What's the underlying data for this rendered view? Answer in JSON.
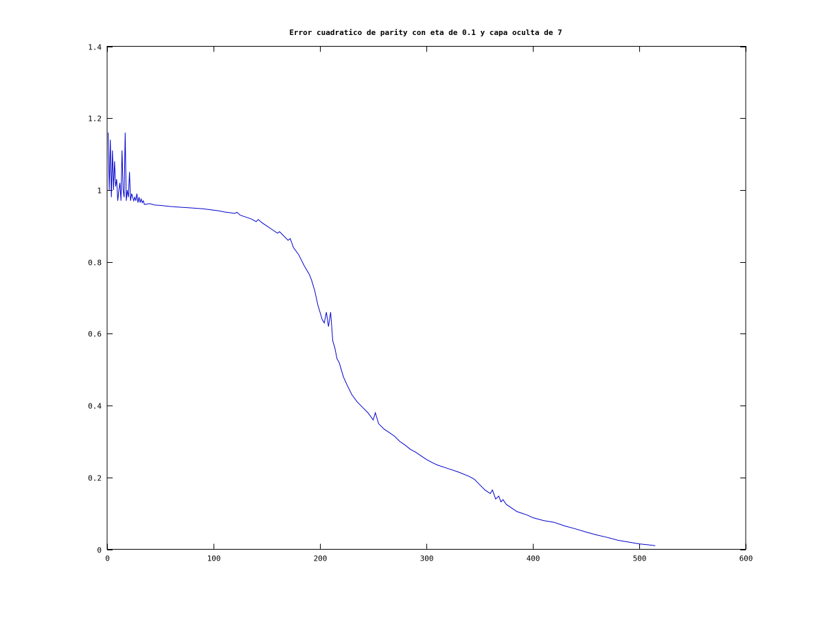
{
  "chart_data": {
    "type": "line",
    "title": "Error cuadratico de parity con eta de 0.1 y capa oculta de 7",
    "xlabel": "",
    "ylabel": "",
    "xlim": [
      0,
      600
    ],
    "ylim": [
      0,
      1.4
    ],
    "xticks": [
      0,
      100,
      200,
      300,
      400,
      500,
      600
    ],
    "yticks": [
      0,
      0.2,
      0.4,
      0.6,
      0.8,
      1,
      1.2,
      1.4
    ],
    "xtick_labels": [
      "0",
      "100",
      "200",
      "300",
      "400",
      "500",
      "600"
    ],
    "ytick_labels": [
      "0",
      "0.2",
      "0.4",
      "0.6",
      "0.8",
      "1",
      "1.2",
      "1.4"
    ],
    "grid": false,
    "legend": "none",
    "line_color": "#0000cc",
    "series": [
      {
        "x": [
          1,
          2,
          3,
          4,
          5,
          6,
          7,
          8,
          9,
          10,
          11,
          12,
          13,
          14,
          15,
          16,
          17,
          18,
          19,
          20,
          21,
          22,
          23,
          24,
          25,
          26,
          27,
          28,
          29,
          30,
          31,
          32,
          33,
          34,
          35,
          40,
          45,
          50,
          60,
          70,
          80,
          90,
          95,
          100,
          105,
          110,
          115,
          120,
          122,
          125,
          130,
          135,
          140,
          142,
          145,
          150,
          155,
          160,
          162,
          165,
          170,
          172,
          175,
          180,
          185,
          190,
          192,
          195,
          198,
          200,
          202,
          204,
          206,
          208,
          210,
          212,
          214,
          216,
          218,
          220,
          222,
          225,
          230,
          235,
          240,
          245,
          250,
          252,
          255,
          260,
          265,
          270,
          275,
          280,
          285,
          290,
          295,
          300,
          305,
          310,
          320,
          330,
          340,
          345,
          350,
          355,
          360,
          362,
          365,
          368,
          370,
          372,
          375,
          380,
          385,
          390,
          395,
          400,
          410,
          420,
          430,
          440,
          450,
          460,
          470,
          480,
          490,
          500,
          510,
          515
        ],
        "y": [
          1.16,
          1.0,
          1.14,
          0.98,
          1.11,
          1.0,
          1.08,
          1.01,
          1.03,
          0.97,
          1.0,
          1.02,
          0.97,
          1.11,
          1.0,
          0.98,
          1.16,
          0.97,
          1.0,
          0.98,
          1.05,
          0.97,
          0.99,
          0.98,
          0.97,
          0.98,
          0.97,
          0.99,
          0.965,
          0.98,
          0.965,
          0.975,
          0.965,
          0.97,
          0.96,
          0.962,
          0.958,
          0.957,
          0.954,
          0.952,
          0.95,
          0.948,
          0.946,
          0.944,
          0.942,
          0.939,
          0.937,
          0.935,
          0.938,
          0.93,
          0.925,
          0.92,
          0.912,
          0.918,
          0.91,
          0.9,
          0.89,
          0.88,
          0.884,
          0.875,
          0.86,
          0.865,
          0.84,
          0.82,
          0.79,
          0.765,
          0.75,
          0.72,
          0.68,
          0.66,
          0.64,
          0.63,
          0.66,
          0.62,
          0.66,
          0.58,
          0.56,
          0.53,
          0.52,
          0.5,
          0.48,
          0.46,
          0.43,
          0.41,
          0.395,
          0.38,
          0.36,
          0.38,
          0.35,
          0.335,
          0.325,
          0.315,
          0.3,
          0.29,
          0.278,
          0.27,
          0.26,
          0.25,
          0.242,
          0.235,
          0.225,
          0.215,
          0.203,
          0.195,
          0.18,
          0.165,
          0.155,
          0.165,
          0.14,
          0.148,
          0.132,
          0.138,
          0.125,
          0.115,
          0.105,
          0.1,
          0.095,
          0.088,
          0.08,
          0.075,
          0.065,
          0.057,
          0.048,
          0.04,
          0.033,
          0.025,
          0.02,
          0.015,
          0.012,
          0.01
        ]
      }
    ]
  }
}
